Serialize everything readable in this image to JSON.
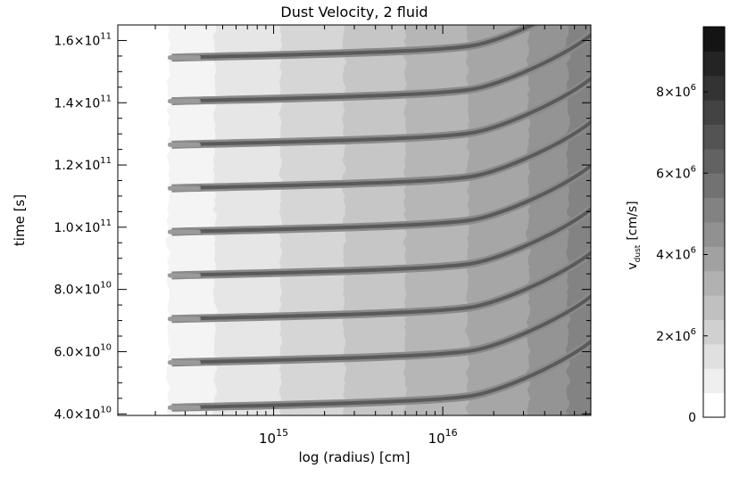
{
  "chart_data": [
    {
      "type": "heatmap",
      "title": "Dust Velocity, 2 fluid",
      "xlabel": "log (radius) [cm]",
      "ylabel": "time [s]",
      "x_scale": "log",
      "xlim": [
        120000000000000.0,
        7.5e+16
      ],
      "ylim": [
        39500000000.0,
        165000000000.0
      ],
      "x_ticks": [
        {
          "value": 1000000000000000.0,
          "base": "10",
          "exp": "15"
        },
        {
          "value": 1e+16,
          "base": "10",
          "exp": "16"
        }
      ],
      "y_ticks": [
        {
          "value": 40000000000.0,
          "mant": "4.0×10",
          "exp": "10"
        },
        {
          "value": 60000000000.0,
          "mant": "6.0×10",
          "exp": "10"
        },
        {
          "value": 80000000000.0,
          "mant": "8.0×10",
          "exp": "10"
        },
        {
          "value": 100000000000.0,
          "mant": "1.0×10",
          "exp": "11"
        },
        {
          "value": 120000000000.0,
          "mant": "1.2×10",
          "exp": "11"
        },
        {
          "value": 140000000000.0,
          "mant": "1.4×10",
          "exp": "11"
        },
        {
          "value": 160000000000.0,
          "mant": "1.6×10",
          "exp": "11"
        }
      ],
      "pulse_times_s": [
        42000000000.0,
        56500000000.0,
        70500000000.0,
        84500000000.0,
        98500000000.0,
        112500000000.0,
        126500000000.0,
        140500000000.0,
        154500000000.0
      ],
      "pulse_onset_radius_cm": 250000000000000.0,
      "colormap": "grayscale, white (low) to black (high)",
      "grid": false
    },
    {
      "type": "colorbar",
      "label": "v_dust [cm/s]",
      "label_main": "v",
      "label_sub": "dust",
      "label_unit": "[cm/s]",
      "range": [
        0,
        9600000.0
      ],
      "levels": 16,
      "ticks": [
        {
          "value": 0,
          "mant": "0",
          "exp": ""
        },
        {
          "value": 2000000.0,
          "mant": "2×10",
          "exp": "6"
        },
        {
          "value": 4000000.0,
          "mant": "4×10",
          "exp": "6"
        },
        {
          "value": 6000000.0,
          "mant": "6×10",
          "exp": "6"
        },
        {
          "value": 8000000.0,
          "mant": "8×10",
          "exp": "6"
        }
      ]
    }
  ]
}
